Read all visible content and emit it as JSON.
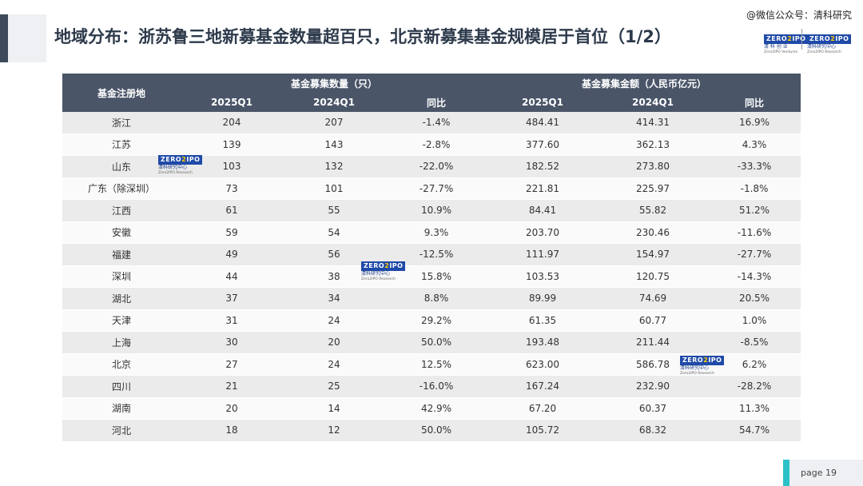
{
  "header": {
    "title": "地域分布：浙苏鲁三地新募基金数量超百只，北京新募集基金规模居于首位（1/2）",
    "watermark": "@微信公众号：清科研究"
  },
  "logos": {
    "zero": "ZERO",
    "ipo": "IPO",
    "cn_right": "清科研究中心",
    "cn_left": "清 科 创 业",
    "en_left": "Zero2IPO Ventures",
    "en_right": "Zero2IPO Research",
    "stamp_cn": "清科研究中心",
    "stamp_en": "Zero2IPO Research"
  },
  "table": {
    "region_header": "基金注册地",
    "group_count": "基金募集数量（只）",
    "group_amount": "基金募集金额（人民币亿元）",
    "sub": [
      "2025Q1",
      "2024Q1",
      "同比",
      "2025Q1",
      "2024Q1",
      "同比"
    ],
    "rows": [
      [
        "浙江",
        "204",
        "207",
        "-1.4%",
        "484.41",
        "414.31",
        "16.9%"
      ],
      [
        "江苏",
        "139",
        "143",
        "-2.8%",
        "377.60",
        "362.13",
        "4.3%"
      ],
      [
        "山东",
        "103",
        "132",
        "-22.0%",
        "182.52",
        "273.80",
        "-33.3%"
      ],
      [
        "广东（除深圳）",
        "73",
        "101",
        "-27.7%",
        "221.81",
        "225.97",
        "-1.8%"
      ],
      [
        "江西",
        "61",
        "55",
        "10.9%",
        "84.41",
        "55.82",
        "51.2%"
      ],
      [
        "安徽",
        "59",
        "54",
        "9.3%",
        "203.70",
        "230.46",
        "-11.6%"
      ],
      [
        "福建",
        "49",
        "56",
        "-12.5%",
        "111.97",
        "154.97",
        "-27.7%"
      ],
      [
        "深圳",
        "44",
        "38",
        "15.8%",
        "103.53",
        "120.75",
        "-14.3%"
      ],
      [
        "湖北",
        "37",
        "34",
        "8.8%",
        "89.99",
        "74.69",
        "20.5%"
      ],
      [
        "天津",
        "31",
        "24",
        "29.2%",
        "61.35",
        "60.77",
        "1.0%"
      ],
      [
        "上海",
        "30",
        "20",
        "50.0%",
        "193.48",
        "211.44",
        "-8.5%"
      ],
      [
        "北京",
        "27",
        "24",
        "12.5%",
        "623.00",
        "586.78",
        "6.2%"
      ],
      [
        "四川",
        "21",
        "25",
        "-16.0%",
        "167.24",
        "232.90",
        "-28.2%"
      ],
      [
        "湖南",
        "20",
        "14",
        "42.9%",
        "67.20",
        "60.37",
        "11.3%"
      ],
      [
        "河北",
        "18",
        "12",
        "50.0%",
        "105.72",
        "68.32",
        "54.7%"
      ]
    ]
  },
  "footer": {
    "page_label": "page  19"
  }
}
